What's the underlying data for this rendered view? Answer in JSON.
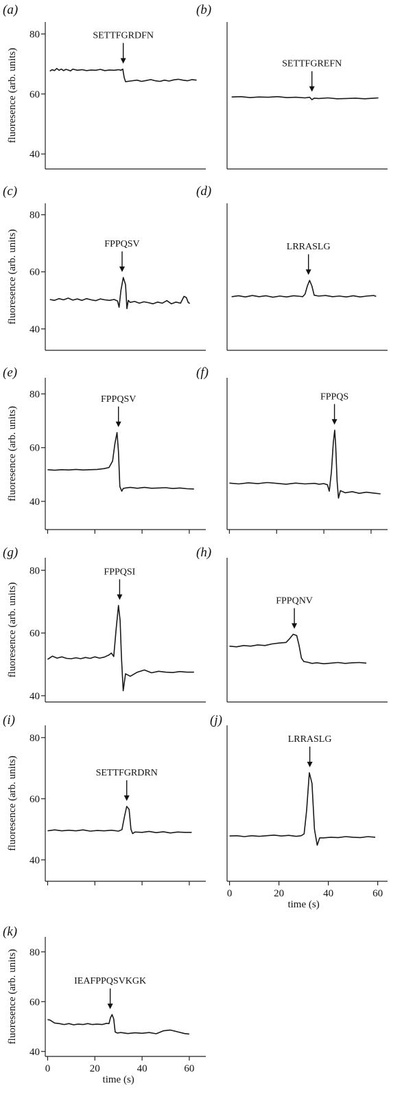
{
  "chart_data": [
    {
      "panel": "(a)",
      "type": "line",
      "ylabel": "fluoresence (arb. units)",
      "ylim": [
        35,
        84
      ],
      "yticks": [
        40,
        60,
        80
      ],
      "xlim": [
        -2,
        68
      ],
      "xticks": [],
      "xlabel": "",
      "series": [
        {
          "x": [
            0,
            1,
            2,
            3,
            4,
            5,
            6,
            7,
            8,
            9,
            10,
            12,
            14,
            16,
            18,
            20,
            22,
            24,
            26,
            28,
            30,
            31,
            31.8,
            32.4,
            33,
            35,
            38,
            40,
            42,
            44,
            46,
            48,
            50,
            52,
            54,
            56,
            58,
            60,
            62,
            64
          ],
          "y": [
            67.6,
            68.1,
            67.8,
            68.5,
            67.9,
            68.3,
            67.8,
            68.2,
            68.0,
            67.7,
            68.3,
            67.9,
            68.1,
            67.8,
            68.0,
            67.9,
            68.2,
            67.8,
            68.0,
            67.9,
            68.1,
            67.9,
            68.3,
            65.5,
            64.1,
            64.3,
            64.6,
            64.2,
            64.5,
            64.8,
            64.4,
            64.2,
            64.6,
            64.3,
            64.7,
            64.9,
            64.6,
            64.4,
            64.8,
            64.6
          ]
        }
      ],
      "annotations": [
        {
          "text": "SETTFGRDFN",
          "x": 32
        }
      ]
    },
    {
      "panel": "(b)",
      "type": "line",
      "ylabel": "",
      "ylim": [
        35,
        84
      ],
      "yticks": [],
      "xlim": [
        -2,
        68
      ],
      "xticks": [],
      "xlabel": "",
      "series": [
        {
          "x": [
            0,
            4,
            8,
            12,
            16,
            20,
            24,
            28,
            32,
            34,
            35,
            36,
            38,
            42,
            46,
            50,
            54,
            58,
            62,
            64
          ],
          "y": [
            59.0,
            59.1,
            58.8,
            59.0,
            58.9,
            59.1,
            58.8,
            58.9,
            58.7,
            58.9,
            58.1,
            58.6,
            58.5,
            58.7,
            58.4,
            58.5,
            58.6,
            58.4,
            58.6,
            58.7
          ]
        }
      ],
      "annotations": [
        {
          "text": "SETTFGREFN",
          "x": 35
        }
      ]
    },
    {
      "panel": "(c)",
      "type": "line",
      "ylabel": "fluoresence (arb. units)",
      "ylim": [
        32.5,
        84
      ],
      "yticks": [
        40,
        60,
        80
      ],
      "xlim": [
        -2,
        68
      ],
      "xticks": [],
      "xlabel": "",
      "series": [
        {
          "x": [
            0,
            2,
            4,
            6,
            8,
            10,
            12,
            14,
            16,
            18,
            20,
            22,
            24,
            26,
            28,
            29.5,
            30.2,
            31,
            32,
            33,
            33.6,
            34.2,
            35,
            37,
            39,
            41,
            43,
            45,
            47,
            49,
            51,
            53,
            55,
            57,
            58.5,
            59.5,
            60.3,
            61
          ],
          "y": [
            50.3,
            50.0,
            50.6,
            50.2,
            50.8,
            50.1,
            50.5,
            50.0,
            50.6,
            50.2,
            49.9,
            50.5,
            50.2,
            50.0,
            50.3,
            49.8,
            47.6,
            53.5,
            58.0,
            55.5,
            47.1,
            50.0,
            49.3,
            49.6,
            49.0,
            49.5,
            49.2,
            48.8,
            49.4,
            49.0,
            49.9,
            48.8,
            49.4,
            49.0,
            51.4,
            51.0,
            49.3,
            48.9
          ]
        }
      ],
      "annotations": [
        {
          "text": "FPPQSV",
          "x": 31.5
        }
      ]
    },
    {
      "panel": "(d)",
      "type": "line",
      "ylabel": "",
      "ylim": [
        32.5,
        84
      ],
      "yticks": [],
      "xlim": [
        -2,
        68
      ],
      "xticks": [],
      "xlabel": "",
      "series": [
        {
          "x": [
            0,
            3,
            6,
            9,
            12,
            15,
            18,
            21,
            24,
            27,
            30,
            31,
            32,
            33,
            34,
            35,
            36,
            38,
            41,
            44,
            47,
            50,
            53,
            56,
            59,
            62,
            63
          ],
          "y": [
            51.3,
            51.6,
            51.2,
            51.7,
            51.3,
            51.6,
            51.1,
            51.5,
            51.2,
            51.6,
            51.4,
            51.3,
            52.2,
            55.0,
            57.0,
            55.0,
            51.8,
            51.5,
            51.7,
            51.3,
            51.5,
            51.2,
            51.6,
            51.2,
            51.5,
            51.7,
            51.4
          ]
        }
      ],
      "annotations": [
        {
          "text": "LRRASLG",
          "x": 33.5
        }
      ]
    },
    {
      "panel": "(e)",
      "type": "line",
      "ylabel": "fluoresence (arb. units)",
      "ylim": [
        29.5,
        86
      ],
      "yticks": [
        40,
        60,
        80
      ],
      "xlim": [
        -1,
        67
      ],
      "xticks": [
        0,
        20,
        40,
        60
      ],
      "xlabel": "",
      "series": [
        {
          "x": [
            0,
            3,
            6,
            9,
            12,
            15,
            18,
            21,
            24,
            26,
            27.5,
            28.5,
            29.4,
            30,
            30.6,
            31.4,
            32,
            33,
            35,
            38,
            41,
            44,
            47,
            50,
            53,
            56,
            59,
            62
          ],
          "y": [
            51.8,
            51.6,
            51.8,
            51.7,
            51.9,
            51.7,
            51.8,
            51.9,
            52.2,
            52.6,
            55.0,
            61.5,
            65.6,
            58.5,
            45.5,
            43.8,
            44.8,
            45.0,
            45.2,
            44.9,
            45.2,
            44.9,
            45.0,
            45.1,
            44.8,
            45.0,
            44.7,
            44.6
          ]
        }
      ],
      "annotations": [
        {
          "text": "FPPQSV",
          "x": 30
        }
      ]
    },
    {
      "panel": "(f)",
      "type": "line",
      "ylabel": "",
      "ylim": [
        29.5,
        86
      ],
      "yticks": [],
      "xlim": [
        -1,
        67
      ],
      "xticks": [
        0,
        20,
        40,
        60
      ],
      "xlabel": "",
      "series": [
        {
          "x": [
            0,
            4,
            8,
            12,
            16,
            20,
            24,
            28,
            32,
            36,
            38,
            40,
            41.5,
            42.3,
            43.2,
            44,
            44.6,
            45,
            45.6,
            46.2,
            47,
            49,
            52,
            55,
            58,
            61,
            64
          ],
          "y": [
            46.8,
            46.5,
            46.9,
            46.6,
            47.0,
            46.7,
            46.4,
            46.8,
            46.5,
            46.7,
            46.4,
            46.6,
            46.2,
            43.8,
            51.0,
            62.0,
            66.5,
            61.0,
            47.5,
            41.2,
            44.0,
            43.2,
            43.6,
            43.0,
            43.4,
            43.1,
            42.8
          ]
        }
      ],
      "annotations": [
        {
          "text": "FPPQS",
          "x": 44.5
        }
      ]
    },
    {
      "panel": "(g)",
      "type": "line",
      "ylabel": "fluoresence (arb. units)",
      "ylim": [
        38,
        84
      ],
      "yticks": [
        40,
        60,
        80
      ],
      "xlim": [
        -1,
        67
      ],
      "xticks": [],
      "xlabel": "",
      "series": [
        {
          "x": [
            0,
            2,
            4,
            6,
            8,
            10,
            12,
            14,
            16,
            18,
            20,
            22,
            24,
            26,
            27,
            28,
            29,
            30,
            30.7,
            31.3,
            32,
            33,
            35,
            38,
            41,
            44,
            47,
            50,
            53,
            56,
            59,
            62
          ],
          "y": [
            51.6,
            52.6,
            52.0,
            52.4,
            51.9,
            51.8,
            52.1,
            51.8,
            52.2,
            51.9,
            52.4,
            52.0,
            52.3,
            53.0,
            53.6,
            52.5,
            61.0,
            68.8,
            64.0,
            52.0,
            41.6,
            47.0,
            46.2,
            47.5,
            48.2,
            47.3,
            47.8,
            47.5,
            47.4,
            47.7,
            47.5,
            47.5
          ]
        }
      ],
      "annotations": [
        {
          "text": "FPPQSI",
          "x": 30.5
        }
      ]
    },
    {
      "panel": "(h)",
      "type": "line",
      "ylabel": "",
      "ylim": [
        38,
        84
      ],
      "yticks": [],
      "xlim": [
        -1,
        67
      ],
      "xticks": [],
      "xlabel": "",
      "series": [
        {
          "x": [
            0,
            3,
            6,
            9,
            12,
            15,
            18,
            21,
            24,
            25.5,
            27,
            28.5,
            29.5,
            30.5,
            31.5,
            33,
            35,
            37,
            40,
            43,
            46,
            49,
            52,
            55,
            58
          ],
          "y": [
            55.8,
            55.6,
            56.0,
            55.8,
            56.2,
            56.0,
            56.5,
            56.8,
            57.0,
            58.2,
            59.6,
            59.2,
            56.0,
            52.0,
            50.9,
            50.7,
            50.3,
            50.5,
            50.2,
            50.4,
            50.6,
            50.3,
            50.5,
            50.6,
            50.4
          ]
        }
      ],
      "annotations": [
        {
          "text": "FPPQNV",
          "x": 27.5
        }
      ]
    },
    {
      "panel": "(i)",
      "type": "line",
      "ylabel": "fluoresence (arb. units)",
      "ylim": [
        33,
        84
      ],
      "yticks": [
        40,
        60,
        80
      ],
      "xlim": [
        -1,
        67
      ],
      "xticks": [
        0,
        20,
        40,
        60
      ],
      "xlabel": "",
      "series": [
        {
          "x": [
            0,
            3,
            6,
            9,
            12,
            15,
            18,
            21,
            24,
            27,
            30,
            31.5,
            32.5,
            33.5,
            34.5,
            35.3,
            36,
            37,
            40,
            43,
            46,
            49,
            52,
            55,
            58,
            61
          ],
          "y": [
            49.5,
            49.8,
            49.5,
            49.7,
            49.5,
            49.8,
            49.4,
            49.6,
            49.5,
            49.7,
            49.4,
            49.9,
            54.0,
            57.5,
            56.5,
            50.0,
            48.6,
            49.1,
            49.0,
            49.3,
            48.9,
            49.2,
            48.8,
            49.1,
            49.0,
            49.0
          ]
        }
      ],
      "annotations": [
        {
          "text": "SETTFGRDRN",
          "x": 33.5
        }
      ]
    },
    {
      "panel": "(j)",
      "type": "line",
      "ylabel": "",
      "ylim": [
        33,
        84
      ],
      "yticks": [],
      "xlim": [
        -1,
        64
      ],
      "xticks": [
        0,
        20,
        40,
        60
      ],
      "xlabel": "time (s)",
      "series": [
        {
          "x": [
            0,
            3,
            6,
            9,
            12,
            15,
            18,
            21,
            24,
            27,
            29,
            30.2,
            31.2,
            32.3,
            33.4,
            34.4,
            35.5,
            36.5,
            38,
            41,
            44,
            47,
            50,
            53,
            56,
            59
          ],
          "y": [
            47.8,
            47.9,
            47.6,
            47.9,
            47.7,
            47.9,
            48.1,
            47.8,
            48.0,
            47.7,
            47.9,
            48.5,
            56.0,
            68.5,
            65.0,
            50.0,
            44.8,
            47.2,
            47.2,
            47.4,
            47.3,
            47.6,
            47.4,
            47.3,
            47.6,
            47.4
          ]
        }
      ],
      "annotations": [
        {
          "text": "LRRASLG",
          "x": 32.5
        }
      ]
    },
    {
      "panel": "(k)",
      "type": "line",
      "ylabel": "fluoresence (arb. units)",
      "ylim": [
        38,
        86
      ],
      "yticks": [
        40,
        60,
        80
      ],
      "xlim": [
        -1,
        67
      ],
      "xticks": [
        0,
        20,
        40,
        60
      ],
      "xlabel": "time (s)",
      "series": [
        {
          "x": [
            0,
            1,
            2,
            3,
            5,
            7,
            9,
            11,
            13,
            15,
            17,
            19,
            21,
            23,
            25,
            26,
            26.6,
            27.3,
            28,
            28.6,
            29.5,
            31,
            34,
            37,
            40,
            43,
            46,
            49,
            52,
            55,
            58,
            60
          ],
          "y": [
            52.8,
            52.6,
            52.0,
            51.4,
            51.2,
            50.8,
            51.2,
            50.7,
            51.0,
            50.8,
            51.2,
            50.8,
            51.0,
            50.8,
            51.3,
            51.2,
            53.5,
            54.8,
            53.0,
            47.8,
            47.4,
            47.6,
            47.2,
            47.5,
            47.3,
            47.6,
            47.1,
            48.3,
            48.6,
            47.9,
            47.2,
            47.0
          ]
        }
      ],
      "annotations": [
        {
          "text": "IEAFPPQSVKGK",
          "x": 26.5
        }
      ]
    }
  ]
}
